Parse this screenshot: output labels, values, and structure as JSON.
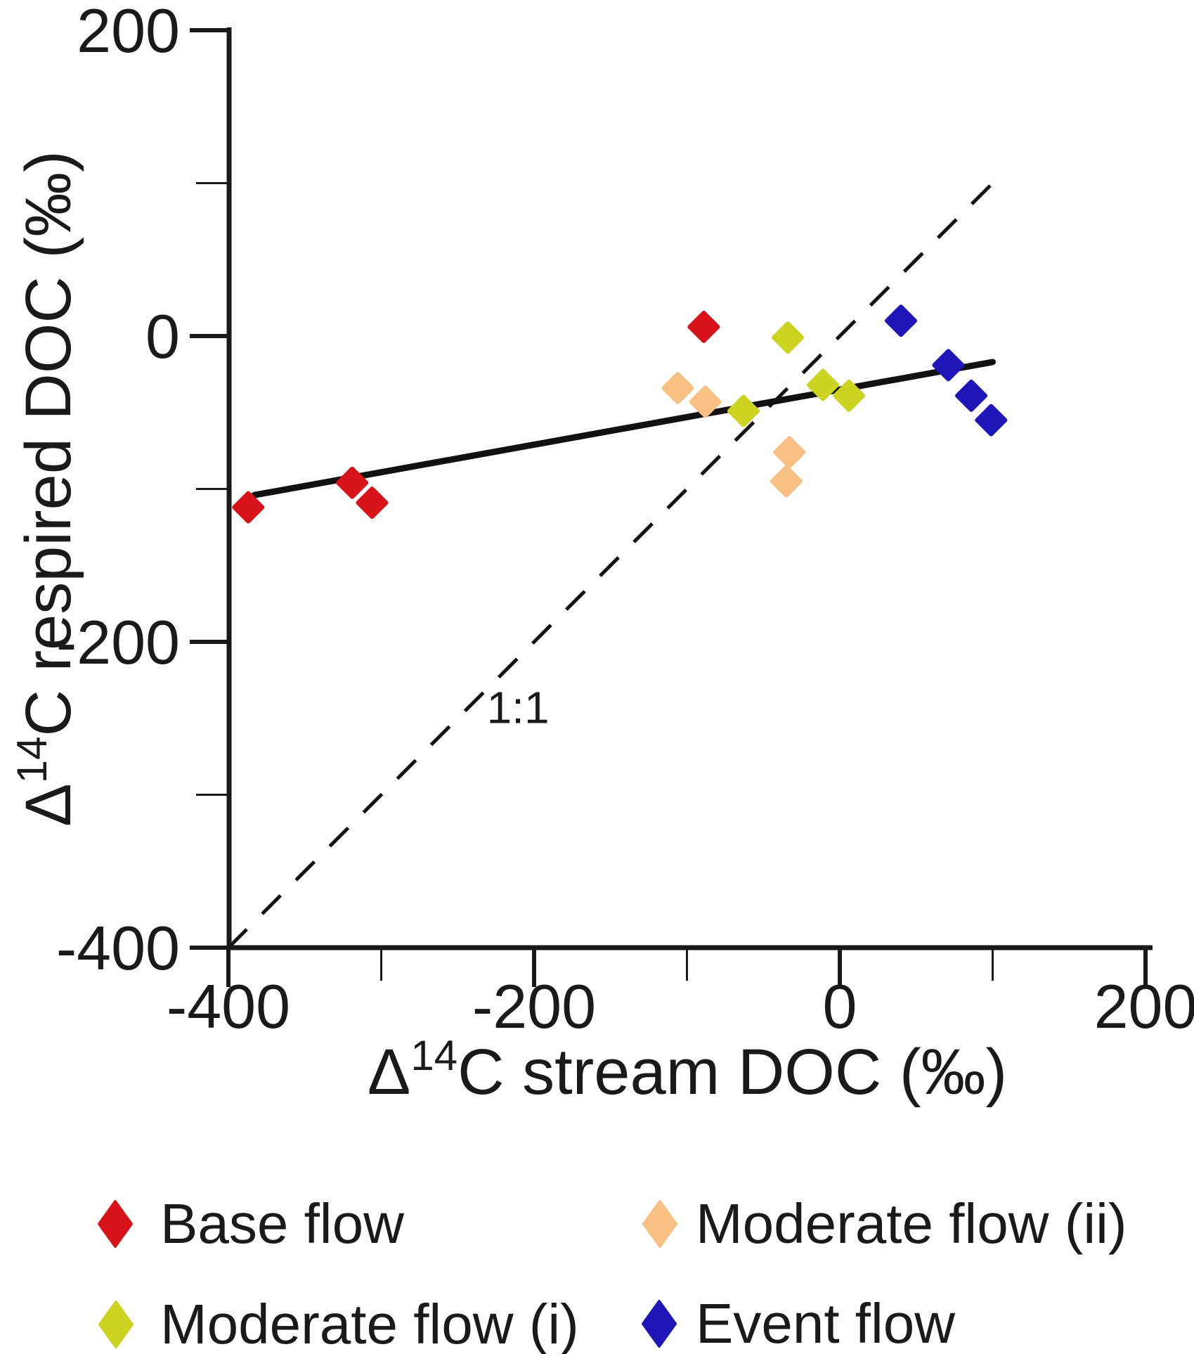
{
  "figure": {
    "background": "#ffffff"
  },
  "chart_data": {
    "type": "scatter",
    "title": "",
    "xlabel": {
      "delta": "Δ",
      "sup": "14",
      "rest": "C stream DOC (‰)"
    },
    "ylabel": {
      "delta": "Δ",
      "sup": "14",
      "rest": "C respired DOC (‰)"
    },
    "xlim": [
      -400,
      200
    ],
    "ylim": [
      -400,
      200
    ],
    "grid": false,
    "x_ticks": {
      "major": [
        {
          "v": -400,
          "label": "-400"
        },
        {
          "v": -200,
          "label": "-200"
        },
        {
          "v": 0,
          "label": "0"
        },
        {
          "v": 200,
          "label": "200"
        }
      ],
      "minor": [
        -300,
        -100,
        100
      ]
    },
    "y_ticks": {
      "major": [
        {
          "v": 200,
          "label": "200"
        },
        {
          "v": 0,
          "label": "0"
        },
        {
          "v": -200,
          "label": "-200"
        },
        {
          "v": -400,
          "label": "-400"
        }
      ],
      "minor": [
        100,
        -100,
        -300
      ]
    },
    "series": [
      {
        "name": "Base flow",
        "color": "#d8141a",
        "marker": "diamond",
        "points": [
          [
            -387,
            -112
          ],
          [
            -319,
            -96
          ],
          [
            -306,
            -109
          ],
          [
            -89,
            6
          ]
        ]
      },
      {
        "name": "Moderate flow (i)",
        "color": "#ccd320",
        "marker": "diamond",
        "points": [
          [
            -63,
            -49
          ],
          [
            -34,
            -1
          ],
          [
            -11,
            -32
          ],
          [
            6,
            -39
          ]
        ]
      },
      {
        "name": "Moderate flow (ii)",
        "color": "#f8c083",
        "marker": "diamond",
        "points": [
          [
            -106,
            -34
          ],
          [
            -88,
            -43
          ],
          [
            -35,
            -95
          ],
          [
            -33,
            -76
          ]
        ]
      },
      {
        "name": "Event flow",
        "color": "#1f16b9",
        "marker": "diamond",
        "points": [
          [
            40,
            10
          ],
          [
            71,
            -19
          ],
          [
            86,
            -39
          ],
          [
            99,
            -55
          ]
        ]
      }
    ],
    "lines": [
      {
        "name": "one-to-one-line",
        "style": "dashed",
        "color": "#111111",
        "from": [
          -400,
          -400
        ],
        "to": [
          102,
          102
        ]
      },
      {
        "name": "regression-line",
        "style": "solid",
        "color": "#111111",
        "from": [
          -383,
          -104
        ],
        "to": [
          100,
          -17
        ]
      }
    ],
    "annotations": [
      {
        "text": "1:1",
        "x": -231,
        "y": -253,
        "anchor": "start"
      }
    ],
    "legend_position": "bottom"
  },
  "legend": {
    "items": [
      {
        "label": "Base flow",
        "color": "#d8141a"
      },
      {
        "label": "Moderate flow (i)",
        "color": "#ccd320"
      },
      {
        "label": "Moderate flow (ii)",
        "color": "#f8c083"
      },
      {
        "label": "Event flow",
        "color": "#1f16b9"
      }
    ]
  }
}
